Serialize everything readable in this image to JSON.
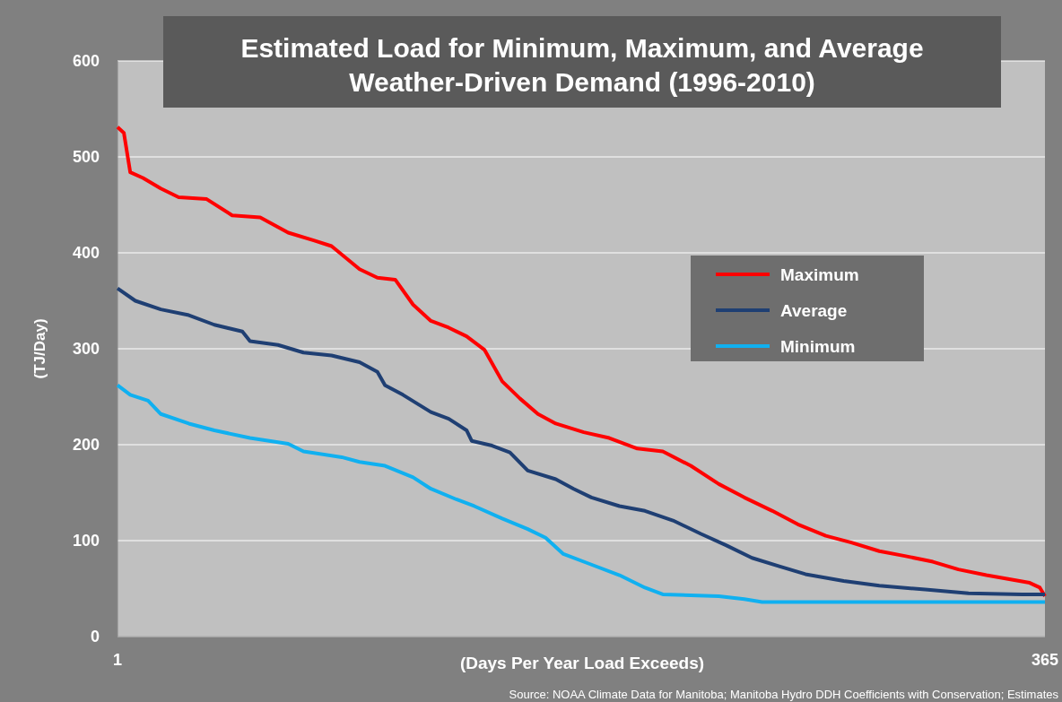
{
  "chart_data": {
    "type": "line",
    "title": "Estimated Load for Minimum, Maximum, and Average Weather-Driven Demand (1996-2010)",
    "xlabel": "(Days Per Year Load Exceeds)",
    "ylabel": "(TJ/Day)",
    "annotations": [
      "Source: NOAA Climate Data for Manitoba; Manitoba Hydro DDH Coefficients with Conservation; Estimates"
    ],
    "xlim": [
      1,
      365
    ],
    "xticks": [
      1,
      365
    ],
    "ylim": [
      0,
      600
    ],
    "yticks": [
      0,
      100,
      200,
      300,
      400,
      500,
      600
    ],
    "grid": "y",
    "legend": "right",
    "marker": "none",
    "line_style": "solid",
    "series": [
      {
        "name": "Maximum",
        "color": "#ff0000",
        "x": [
          1,
          3.5,
          6,
          11,
          18,
          25,
          36,
          46,
          57,
          68,
          78,
          85,
          96,
          103,
          110,
          117,
          124,
          131,
          138,
          145,
          152,
          159,
          166,
          173,
          184,
          194,
          205,
          215,
          226,
          237,
          247,
          258,
          268,
          279,
          289,
          300,
          310,
          321,
          331,
          342,
          359,
          363,
          365
        ],
        "values": [
          531,
          525,
          484,
          478,
          467,
          458,
          456,
          439,
          437,
          421,
          413,
          407,
          383,
          374,
          372,
          346,
          329,
          322,
          313,
          299,
          266,
          248,
          232,
          222,
          213,
          207,
          196,
          193,
          178,
          159,
          145,
          131,
          117,
          105,
          98,
          89,
          84,
          78,
          70,
          64,
          56,
          51,
          42
        ]
      },
      {
        "name": "Average",
        "color": "#1f3f73",
        "x": [
          1,
          8,
          18,
          29,
          39,
          50,
          53,
          64,
          74,
          85,
          96,
          103,
          106,
          113,
          124,
          131,
          138,
          140,
          148,
          155,
          162,
          173,
          180,
          187,
          198,
          208,
          219,
          230,
          240,
          250,
          261,
          271,
          286,
          300,
          318,
          335,
          356,
          365
        ],
        "values": [
          363,
          350,
          341,
          335,
          325,
          318,
          308,
          304,
          296,
          293,
          286,
          276,
          262,
          252,
          234,
          227,
          215,
          204,
          199,
          192,
          173,
          164,
          154,
          145,
          136,
          131,
          121,
          107,
          95,
          82,
          73,
          65,
          58,
          53,
          49,
          45,
          44,
          44
        ]
      },
      {
        "name": "Minimum",
        "color": "#10b0f0",
        "x": [
          1,
          6,
          13,
          18,
          29,
          39,
          53,
          68,
          74,
          89,
          96,
          106,
          117,
          124,
          134,
          141,
          152,
          162,
          169,
          176,
          187,
          198,
          208,
          215,
          237,
          247,
          254,
          365
        ],
        "values": [
          262,
          252,
          246,
          232,
          222,
          215,
          207,
          201,
          193,
          187,
          182,
          178,
          166,
          154,
          143,
          136,
          123,
          112,
          103,
          86,
          75,
          64,
          51,
          44,
          42,
          39,
          36,
          36
        ]
      }
    ]
  }
}
